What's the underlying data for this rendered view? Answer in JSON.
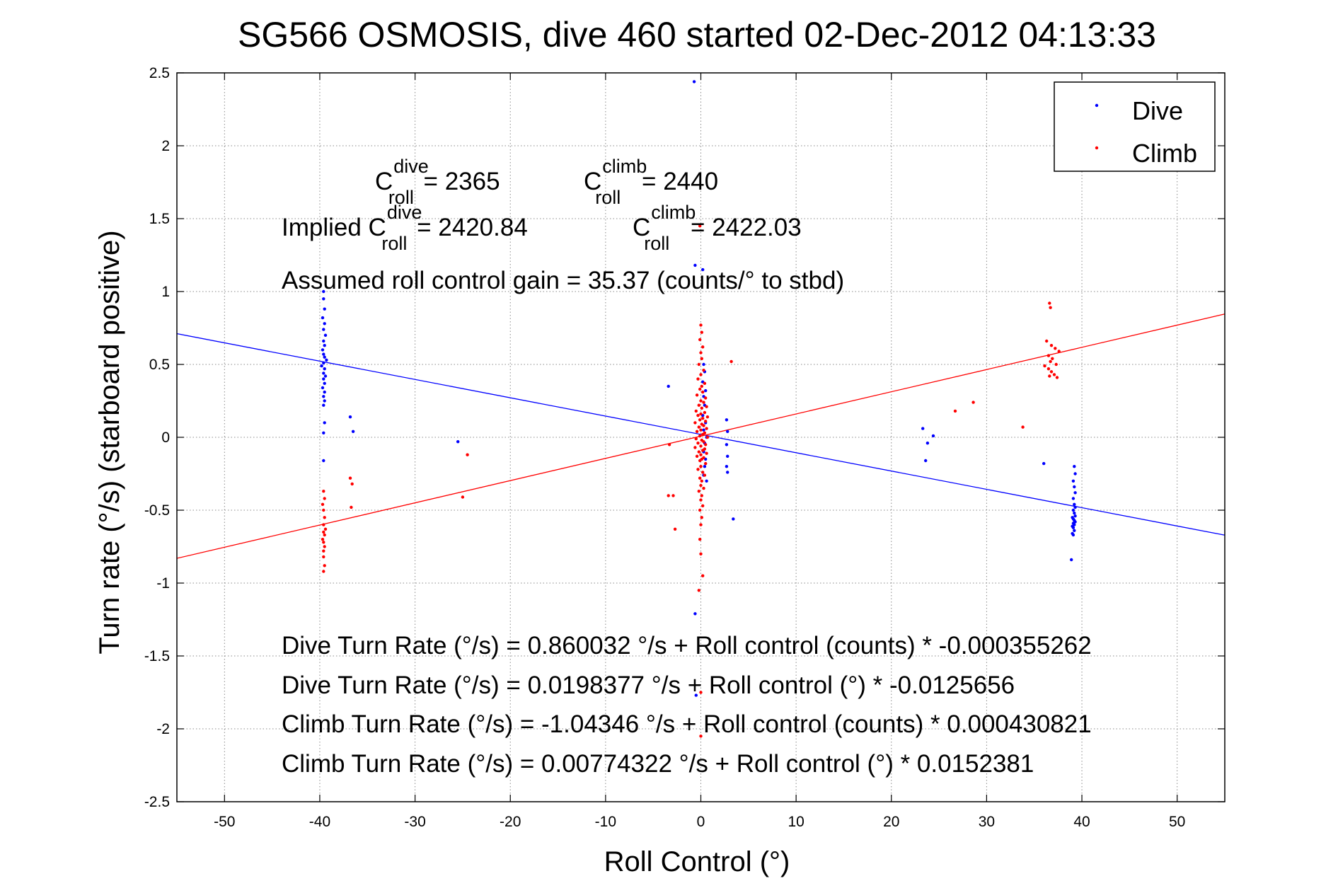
{
  "chart_data": {
    "type": "scatter",
    "title": "SG566 OSMOSIS, dive 460 started 02-Dec-2012 04:13:33",
    "xlabel": "Roll Control (°)",
    "ylabel": "Turn rate (°/s)  (starboard positive)",
    "xlim": [
      -55,
      55
    ],
    "ylim": [
      -2.5,
      2.5
    ],
    "xticks": [
      -50,
      -40,
      -30,
      -20,
      -10,
      0,
      10,
      20,
      30,
      40,
      50
    ],
    "yticks": [
      -2.5,
      -2,
      -1.5,
      -1,
      -0.5,
      0,
      0.5,
      1,
      1.5,
      2,
      2.5
    ],
    "xtick_labels": [
      "-50",
      "-40",
      "-30",
      "-20",
      "-10",
      "0",
      "10",
      "20",
      "30",
      "40",
      "50"
    ],
    "ytick_labels": [
      "-2.5",
      "-2",
      "-1.5",
      "-1",
      "-0.5",
      "0",
      "0.5",
      "1",
      "1.5",
      "2",
      "2.5"
    ],
    "grid": true,
    "legend_position": "top-right",
    "series": [
      {
        "name": "Dive",
        "color": "#0000ff",
        "points": [
          [
            -39.6,
            1.0
          ],
          [
            -39.6,
            0.95
          ],
          [
            -39.5,
            0.88
          ],
          [
            -39.7,
            0.82
          ],
          [
            -39.5,
            0.78
          ],
          [
            -39.6,
            0.74
          ],
          [
            -39.4,
            0.7
          ],
          [
            -39.6,
            0.66
          ],
          [
            -39.5,
            0.63
          ],
          [
            -39.7,
            0.6
          ],
          [
            -39.6,
            0.57
          ],
          [
            -39.5,
            0.55
          ],
          [
            -39.3,
            0.53
          ],
          [
            -39.6,
            0.51
          ],
          [
            -39.8,
            0.49
          ],
          [
            -39.5,
            0.47
          ],
          [
            -39.6,
            0.44
          ],
          [
            -39.4,
            0.42
          ],
          [
            -39.6,
            0.4
          ],
          [
            -39.5,
            0.37
          ],
          [
            -39.7,
            0.34
          ],
          [
            -39.5,
            0.31
          ],
          [
            -39.6,
            0.28
          ],
          [
            -39.5,
            0.25
          ],
          [
            -39.6,
            0.22
          ],
          [
            -39.5,
            0.1
          ],
          [
            -39.6,
            0.03
          ],
          [
            -39.6,
            -0.16
          ],
          [
            -36.8,
            0.14
          ],
          [
            -36.5,
            0.04
          ],
          [
            -25.5,
            -0.03
          ],
          [
            -0.7,
            2.44
          ],
          [
            -0.6,
            1.18
          ],
          [
            0.2,
            1.15
          ],
          [
            0.3,
            0.5
          ],
          [
            0.4,
            0.45
          ],
          [
            0.2,
            0.38
          ],
          [
            0.5,
            0.32
          ],
          [
            0.3,
            0.28
          ],
          [
            0.4,
            0.22
          ],
          [
            0.2,
            0.15
          ],
          [
            0.5,
            0.1
          ],
          [
            0.3,
            0.05
          ],
          [
            0.6,
            0.0
          ],
          [
            0.4,
            -0.04
          ],
          [
            0.3,
            -0.1
          ],
          [
            0.5,
            -0.15
          ],
          [
            0.4,
            -0.2
          ],
          [
            0.3,
            -0.26
          ],
          [
            0.6,
            -0.3
          ],
          [
            -3.4,
            0.35
          ],
          [
            2.7,
            0.12
          ],
          [
            2.8,
            0.04
          ],
          [
            2.7,
            -0.05
          ],
          [
            2.8,
            -0.13
          ],
          [
            2.7,
            -0.2
          ],
          [
            2.8,
            -0.24
          ],
          [
            3.4,
            -0.56
          ],
          [
            -0.6,
            -1.21
          ],
          [
            -0.5,
            -1.77
          ],
          [
            23.3,
            0.06
          ],
          [
            23.8,
            -0.04
          ],
          [
            24.4,
            0.01
          ],
          [
            23.6,
            -0.16
          ],
          [
            36.0,
            -0.18
          ],
          [
            39.2,
            -0.2
          ],
          [
            39.3,
            -0.25
          ],
          [
            39.1,
            -0.3
          ],
          [
            39.2,
            -0.34
          ],
          [
            39.3,
            -0.38
          ],
          [
            39.1,
            -0.42
          ],
          [
            39.2,
            -0.46
          ],
          [
            39.3,
            -0.48
          ],
          [
            39.1,
            -0.5
          ],
          [
            39.2,
            -0.52
          ],
          [
            39.3,
            -0.54
          ],
          [
            39.0,
            -0.55
          ],
          [
            39.1,
            -0.56
          ],
          [
            39.2,
            -0.57
          ],
          [
            39.3,
            -0.58
          ],
          [
            39.1,
            -0.59
          ],
          [
            39.2,
            -0.6
          ],
          [
            39.0,
            -0.61
          ],
          [
            39.1,
            -0.62
          ],
          [
            39.2,
            -0.64
          ],
          [
            39.0,
            -0.66
          ],
          [
            39.1,
            -0.67
          ],
          [
            38.9,
            -0.84
          ]
        ]
      },
      {
        "name": "Climb",
        "color": "#ff0000",
        "points": [
          [
            -39.6,
            -0.37
          ],
          [
            -39.5,
            -0.42
          ],
          [
            -39.7,
            -0.46
          ],
          [
            -39.6,
            -0.5
          ],
          [
            -39.5,
            -0.55
          ],
          [
            -39.6,
            -0.6
          ],
          [
            -39.4,
            -0.63
          ],
          [
            -39.6,
            -0.65
          ],
          [
            -39.5,
            -0.67
          ],
          [
            -39.7,
            -0.7
          ],
          [
            -39.6,
            -0.72
          ],
          [
            -39.5,
            -0.75
          ],
          [
            -39.6,
            -0.78
          ],
          [
            -39.6,
            -0.82
          ],
          [
            -39.5,
            -0.88
          ],
          [
            -39.6,
            -0.92
          ],
          [
            -36.8,
            -0.28
          ],
          [
            -36.6,
            -0.32
          ],
          [
            -36.7,
            -0.48
          ],
          [
            -24.5,
            -0.12
          ],
          [
            -25.0,
            -0.41
          ],
          [
            0.0,
            0.77
          ],
          [
            0.1,
            0.72
          ],
          [
            -0.1,
            0.67
          ],
          [
            0.2,
            0.62
          ],
          [
            0.0,
            0.58
          ],
          [
            0.1,
            0.54
          ],
          [
            -0.2,
            0.5
          ],
          [
            0.3,
            0.46
          ],
          [
            0.0,
            0.43
          ],
          [
            -0.3,
            0.4
          ],
          [
            0.4,
            0.37
          ],
          [
            0.1,
            0.35
          ],
          [
            -0.1,
            0.33
          ],
          [
            0.2,
            0.31
          ],
          [
            -0.4,
            0.29
          ],
          [
            0.5,
            0.27
          ],
          [
            0.0,
            0.25
          ],
          [
            0.3,
            0.24
          ],
          [
            -0.2,
            0.22
          ],
          [
            0.6,
            0.21
          ],
          [
            0.1,
            0.2
          ],
          [
            -0.5,
            0.18
          ],
          [
            0.4,
            0.17
          ],
          [
            0.0,
            0.16
          ],
          [
            -0.3,
            0.15
          ],
          [
            0.7,
            0.14
          ],
          [
            0.2,
            0.13
          ],
          [
            -0.1,
            0.12
          ],
          [
            0.5,
            0.11
          ],
          [
            -0.6,
            0.1
          ],
          [
            0.1,
            0.09
          ],
          [
            0.3,
            0.08
          ],
          [
            -0.2,
            0.07
          ],
          [
            0.6,
            0.06
          ],
          [
            0.0,
            0.05
          ],
          [
            -0.4,
            0.04
          ],
          [
            0.4,
            0.03
          ],
          [
            0.2,
            0.02
          ],
          [
            -0.1,
            0.01
          ],
          [
            0.7,
            0.0
          ],
          [
            -0.5,
            -0.01
          ],
          [
            0.1,
            -0.02
          ],
          [
            0.3,
            -0.03
          ],
          [
            -0.3,
            -0.04
          ],
          [
            0.5,
            -0.05
          ],
          [
            0.0,
            -0.06
          ],
          [
            -0.6,
            -0.07
          ],
          [
            0.4,
            -0.08
          ],
          [
            0.2,
            -0.09
          ],
          [
            -0.2,
            -0.1
          ],
          [
            0.6,
            -0.11
          ],
          [
            0.0,
            -0.12
          ],
          [
            -0.4,
            -0.13
          ],
          [
            0.3,
            -0.14
          ],
          [
            0.1,
            -0.15
          ],
          [
            -0.1,
            -0.16
          ],
          [
            0.5,
            -0.18
          ],
          [
            0.0,
            -0.2
          ],
          [
            -0.3,
            -0.22
          ],
          [
            0.2,
            -0.24
          ],
          [
            0.4,
            -0.26
          ],
          [
            -0.1,
            -0.28
          ],
          [
            0.1,
            -0.3
          ],
          [
            0.0,
            -0.33
          ],
          [
            0.3,
            -0.35
          ],
          [
            -0.2,
            -0.37
          ],
          [
            0.1,
            -0.4
          ],
          [
            0.0,
            -0.43
          ],
          [
            0.2,
            -0.47
          ],
          [
            -0.1,
            -0.5
          ],
          [
            0.1,
            -0.55
          ],
          [
            0.0,
            -0.6
          ],
          [
            -0.1,
            -0.7
          ],
          [
            0.0,
            -0.8
          ],
          [
            0.2,
            -0.95
          ],
          [
            -0.2,
            -1.05
          ],
          [
            0.0,
            -1.75
          ],
          [
            0.0,
            -2.05
          ],
          [
            -0.1,
            1.45
          ],
          [
            3.2,
            0.52
          ],
          [
            -2.9,
            -0.4
          ],
          [
            -3.4,
            -0.4
          ],
          [
            -2.7,
            -0.63
          ],
          [
            -3.3,
            -0.05
          ],
          [
            26.7,
            0.18
          ],
          [
            28.6,
            0.24
          ],
          [
            33.8,
            0.07
          ],
          [
            36.6,
            0.92
          ],
          [
            36.7,
            0.89
          ],
          [
            36.3,
            0.66
          ],
          [
            36.8,
            0.63
          ],
          [
            37.2,
            0.61
          ],
          [
            37.6,
            0.59
          ],
          [
            36.5,
            0.56
          ],
          [
            36.9,
            0.54
          ],
          [
            36.7,
            0.52
          ],
          [
            37.3,
            0.5
          ],
          [
            36.1,
            0.49
          ],
          [
            36.5,
            0.47
          ],
          [
            36.8,
            0.45
          ],
          [
            37.1,
            0.43
          ],
          [
            37.4,
            0.41
          ],
          [
            36.6,
            0.42
          ]
        ]
      }
    ],
    "fit_lines": [
      {
        "series": "Dive",
        "color": "#0000ff",
        "intercept": 0.0198377,
        "slope": -0.0125656
      },
      {
        "series": "Climb",
        "color": "#ff0000",
        "intercept": 0.00774322,
        "slope": 0.0152381
      }
    ],
    "annotations": {
      "c_dive_main": "C",
      "c_dive_sup": "dive",
      "c_dive_sub": "roll",
      "c_dive_value": " = 2365",
      "c_climb_main": "C",
      "c_climb_sup": "climb",
      "c_climb_sub": "roll",
      "c_climb_value": " = 2440",
      "implied_prefix": "Implied C",
      "implied_dive_sup": "dive",
      "implied_dive_sub": "roll",
      "implied_dive_value": " = 2420.84",
      "implied_climb_main": "C",
      "implied_climb_sup": "climb",
      "implied_climb_sub": "roll",
      "implied_climb_value": " = 2422.03",
      "gain": "Assumed roll control gain = 35.37 (counts/° to stbd)",
      "eq1": "Dive Turn Rate (°/s) = 0.860032 °/s + Roll control (counts) * -0.000355262",
      "eq2": "Dive Turn Rate (°/s) = 0.0198377 °/s + Roll control (°) * -0.0125656",
      "eq3": "Climb Turn Rate (°/s) = -1.04346 °/s + Roll control (counts) * 0.000430821",
      "eq4": "Climb Turn Rate (°/s) = 0.00774322 °/s + Roll control (°) * 0.0152381"
    }
  }
}
